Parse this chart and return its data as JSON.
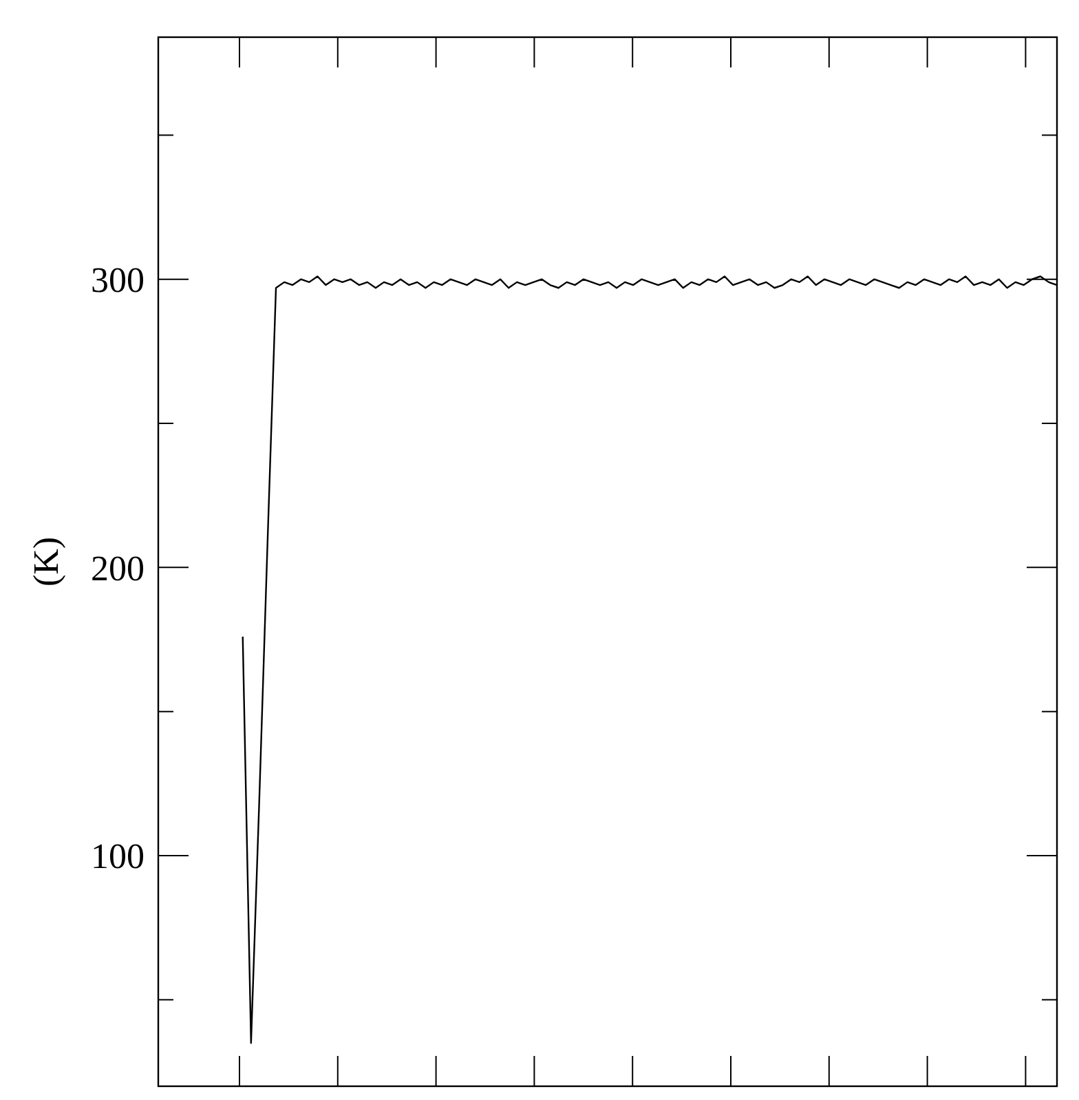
{
  "chart_data": {
    "type": "line",
    "ylabel": "(K)",
    "ylim": [
      20,
      384
    ],
    "yticks": [
      {
        "value": 50,
        "label": null
      },
      100,
      {
        "value": 150,
        "label": null
      },
      200,
      {
        "value": 250,
        "label": null
      },
      300,
      {
        "value": 350,
        "label": null
      }
    ],
    "categories": [
      null,
      null,
      null,
      null,
      null,
      null,
      null,
      null,
      null,
      null,
      null,
      null,
      null,
      null,
      null,
      null,
      null,
      null,
      null,
      null,
      null,
      null,
      null,
      null,
      null,
      null,
      null,
      null,
      null,
      null,
      null,
      null,
      null,
      null,
      null,
      null,
      null,
      null,
      null,
      null,
      null,
      null,
      null,
      null,
      null,
      null,
      null,
      null,
      null,
      null,
      null,
      null,
      null,
      null,
      null,
      null,
      null,
      null,
      null,
      null,
      null,
      null,
      null,
      null,
      null,
      null,
      null,
      null,
      null,
      null,
      null,
      null,
      null,
      null,
      null,
      null,
      null,
      null,
      null,
      null,
      null,
      null,
      null,
      null,
      null,
      null,
      null,
      null,
      null,
      null,
      null,
      null,
      null,
      null,
      null,
      null,
      null,
      null,
      null,
      null,
      null,
      null,
      null,
      null,
      null,
      null,
      null,
      null,
      null
    ],
    "series": [
      {
        "color": "#000000",
        "values": [
          null,
          null,
          null,
          null,
          null,
          null,
          null,
          null,
          null,
          null,
          176,
          35,
          120,
          210,
          297,
          299,
          298,
          300,
          299,
          301,
          298,
          300,
          299,
          300,
          298,
          299,
          297,
          299,
          298,
          300,
          298,
          299,
          297,
          299,
          298,
          300,
          299,
          298,
          300,
          299,
          298,
          300,
          297,
          299,
          298,
          299,
          300,
          298,
          297,
          299,
          298,
          300,
          299,
          298,
          299,
          297,
          299,
          298,
          300,
          299,
          298,
          299,
          300,
          297,
          299,
          298,
          300,
          299,
          301,
          298,
          299,
          300,
          298,
          299,
          297,
          298,
          300,
          299,
          301,
          298,
          300,
          299,
          298,
          300,
          299,
          298,
          300,
          299,
          298,
          297,
          299,
          298,
          300,
          299,
          298,
          300,
          299,
          301,
          298,
          299,
          298,
          300,
          297,
          299,
          298,
          300,
          301,
          299,
          298
        ]
      }
    ],
    "grid": false
  }
}
